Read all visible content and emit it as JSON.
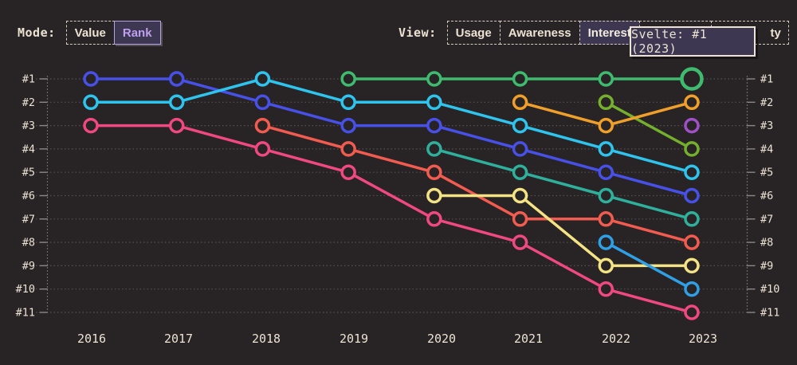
{
  "mode": {
    "label": "Mode:",
    "options": [
      {
        "label": "Value",
        "selected": false
      },
      {
        "label": "Rank",
        "selected": true
      }
    ]
  },
  "view": {
    "label": "View:",
    "options": [
      {
        "label": "Usage",
        "selected": false
      },
      {
        "label": "Awareness",
        "selected": false
      },
      {
        "label": "Interest",
        "selected": true
      },
      {
        "label": "",
        "selected": false,
        "obscured": true
      },
      {
        "label": "ty",
        "selected": false,
        "clipped": true
      }
    ]
  },
  "tooltip": {
    "text": "Svelte: #1 (2023)",
    "series": "Svelte",
    "rank": 1,
    "year": 2023
  },
  "colors": {
    "background": "#282324",
    "text": "#ece3d4",
    "grid": "#565052",
    "axis": "#6e6769",
    "tick": "#8d8688",
    "selected_bg": "#3d3751",
    "mode_selected_text": "#bfa0f0",
    "mode_selected_border": "#b3a3e0"
  },
  "chart_data": {
    "type": "line",
    "subtype": "bump-rank",
    "x": [
      2016,
      2017,
      2018,
      2019,
      2020,
      2021,
      2022,
      2023
    ],
    "y_axis": {
      "labels": [
        "#1",
        "#2",
        "#3",
        "#4",
        "#5",
        "#6",
        "#7",
        "#8",
        "#9",
        "#10",
        "#11"
      ],
      "min": 1,
      "max": 11,
      "inverted": true,
      "mirrored_right": true,
      "grid": "dotted"
    },
    "series": [
      {
        "id": "series-magenta",
        "color": "#f04880",
        "ranks": [
          3,
          3,
          4,
          5,
          7,
          8,
          10,
          11
        ]
      },
      {
        "id": "series-coral",
        "color": "#f25c50",
        "ranks": [
          null,
          null,
          3,
          4,
          5,
          7,
          7,
          8
        ]
      },
      {
        "id": "series-indigo",
        "color": "#4751e8",
        "ranks": [
          1,
          1,
          2,
          3,
          3,
          4,
          5,
          6
        ]
      },
      {
        "id": "series-cyan",
        "color": "#2fc4ee",
        "ranks": [
          2,
          2,
          1,
          2,
          2,
          3,
          4,
          5
        ]
      },
      {
        "id": "series-teal",
        "color": "#2fb09c",
        "ranks": [
          null,
          null,
          null,
          null,
          4,
          5,
          6,
          7
        ]
      },
      {
        "id": "series-yellow",
        "color": "#f4e384",
        "ranks": [
          null,
          null,
          null,
          null,
          6,
          6,
          9,
          9
        ]
      },
      {
        "id": "series-sky",
        "color": "#2f9fe6",
        "ranks": [
          null,
          null,
          null,
          null,
          null,
          null,
          8,
          10
        ]
      },
      {
        "id": "series-olive",
        "color": "#74b02e",
        "ranks": [
          null,
          null,
          null,
          null,
          null,
          null,
          2,
          4
        ]
      },
      {
        "id": "series-orange",
        "color": "#f0a02a",
        "ranks": [
          null,
          null,
          null,
          null,
          null,
          2,
          3,
          2
        ]
      },
      {
        "id": "series-purple",
        "color": "#a050c8",
        "ranks": [
          null,
          null,
          null,
          null,
          null,
          null,
          null,
          3
        ]
      },
      {
        "id": "svelte",
        "name": "Svelte",
        "color": "#3fbb70",
        "ranks": [
          null,
          null,
          null,
          1,
          1,
          1,
          1,
          1
        ],
        "highlight_last": true
      }
    ]
  }
}
